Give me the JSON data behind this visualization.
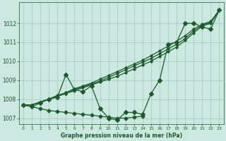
{
  "xlabel": "Graphe pression niveau de la mer (hPa)",
  "bg_color": "#cce8e0",
  "grid_color": "#99ccbb",
  "line_color": "#1a5c2a",
  "xlim_min": -0.5,
  "xlim_max": 23.5,
  "ylim_min": 1006.7,
  "ylim_max": 1013.1,
  "xticks": [
    0,
    1,
    2,
    3,
    4,
    5,
    6,
    7,
    8,
    9,
    10,
    11,
    12,
    13,
    14,
    15,
    16,
    17,
    18,
    19,
    20,
    21,
    22,
    23
  ],
  "yticks": [
    1007,
    1008,
    1009,
    1010,
    1011,
    1012
  ],
  "series_jagged": [
    1007.7,
    1007.6,
    1007.8,
    1008.0,
    1008.1,
    1009.3,
    1008.5,
    1008.4,
    1008.7,
    1007.5,
    1007.0,
    1006.9,
    1007.3,
    1007.3,
    1007.2,
    1008.3,
    1009.0,
    1010.9,
    1011.0,
    1012.0,
    1012.0,
    1011.8,
    1011.7,
    1012.7
  ],
  "series_trend1": [
    1007.7,
    1007.7,
    1007.85,
    1008.0,
    1008.15,
    1008.3,
    1008.45,
    1008.6,
    1008.75,
    1008.9,
    1009.05,
    1009.2,
    1009.4,
    1009.6,
    1009.8,
    1010.0,
    1010.25,
    1010.5,
    1010.75,
    1011.1,
    1011.5,
    1011.85,
    1012.0,
    1012.7
  ],
  "series_trend2": [
    1007.7,
    1007.7,
    1007.85,
    1008.0,
    1008.15,
    1008.3,
    1008.5,
    1008.65,
    1008.8,
    1008.95,
    1009.15,
    1009.35,
    1009.55,
    1009.75,
    1009.95,
    1010.15,
    1010.4,
    1010.65,
    1010.9,
    1011.2,
    1011.6,
    1011.9,
    1012.05,
    1012.7
  ],
  "series_trend3": [
    1007.7,
    1007.7,
    1007.85,
    1008.0,
    1008.2,
    1008.35,
    1008.55,
    1008.7,
    1008.85,
    1009.05,
    1009.25,
    1009.45,
    1009.65,
    1009.85,
    1010.05,
    1010.3,
    1010.55,
    1010.8,
    1011.05,
    1011.35,
    1011.7,
    1011.95,
    1012.1,
    1012.7
  ],
  "series_flat": [
    1007.7,
    1007.6,
    1007.5,
    1007.4,
    1007.35,
    1007.3,
    1007.25,
    1007.2,
    1007.15,
    1007.1,
    1007.05,
    1007.0,
    1007.0,
    1007.05,
    1007.1,
    null,
    null,
    null,
    null,
    null,
    null,
    null,
    null,
    null
  ]
}
